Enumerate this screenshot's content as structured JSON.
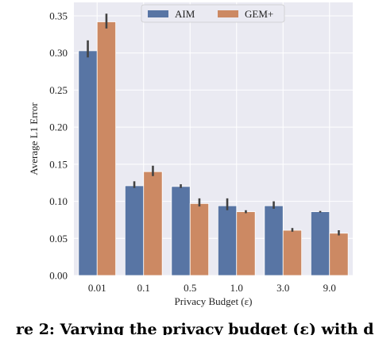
{
  "chart_data": {
    "type": "bar",
    "categories": [
      "0.01",
      "0.1",
      "0.5",
      "1.0",
      "3.0",
      "9.0"
    ],
    "series": [
      {
        "name": "AIM",
        "color": "#5875a4",
        "values": [
          0.303,
          0.121,
          0.12,
          0.094,
          0.094,
          0.086
        ],
        "err_low": [
          0.294,
          0.118,
          0.118,
          0.088,
          0.09,
          0.085
        ],
        "err_high": [
          0.317,
          0.127,
          0.123,
          0.104,
          0.1,
          0.087
        ]
      },
      {
        "name": "GEM+",
        "color": "#cc8963",
        "values": [
          0.342,
          0.14,
          0.097,
          0.086,
          0.061,
          0.057
        ],
        "err_low": [
          0.333,
          0.134,
          0.093,
          0.084,
          0.059,
          0.054
        ],
        "err_high": [
          0.353,
          0.148,
          0.104,
          0.088,
          0.064,
          0.061
        ]
      }
    ],
    "yticks": [
      "0.00",
      "0.05",
      "0.10",
      "0.15",
      "0.20",
      "0.25",
      "0.30",
      "0.35"
    ],
    "ylim": [
      0,
      0.35
    ],
    "xlabel": "Privacy Budget (ε)",
    "ylabel": "Average L1 Error",
    "legend_position": "top-center",
    "grid": true,
    "background": "#eaeaf2"
  },
  "caption": "re 2: Varying the privacy budget (ε) with d"
}
